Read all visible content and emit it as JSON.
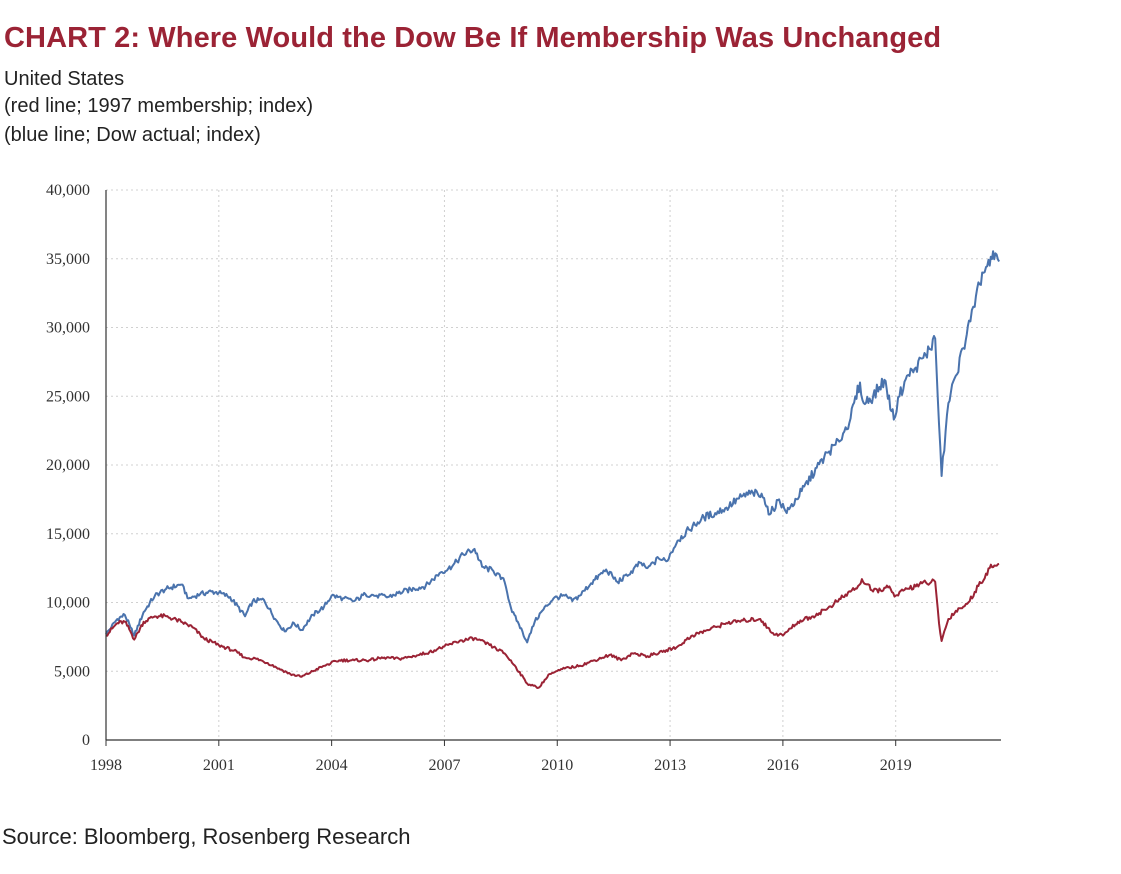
{
  "header": {
    "title": "CHART 2: Where Would the Dow Be If Membership Was Unchanged",
    "subtitle_lines": [
      "United States",
      "(red line; 1997 membership; index)",
      "(blue line; Dow actual; index)"
    ]
  },
  "footer": {
    "source": "Source: Bloomberg, Rosenberg Research"
  },
  "colors": {
    "title": "#9b2335",
    "red_line": "#9b2335",
    "blue_line": "#4a73ad",
    "grid": "#d0d0d0"
  },
  "chart_data": {
    "type": "line",
    "title": "CHART 2: Where Would the Dow Be If Membership Was Unchanged",
    "xlabel": "",
    "ylabel": "",
    "xlim": [
      1998.0,
      2021.8
    ],
    "ylim": [
      0,
      40000
    ],
    "x_ticks": [
      1998,
      2001,
      2004,
      2007,
      2010,
      2013,
      2016,
      2019
    ],
    "x_tick_labels": [
      "1998",
      "2001",
      "2004",
      "2007",
      "2010",
      "2013",
      "2016",
      "2019"
    ],
    "y_ticks": [
      0,
      5000,
      10000,
      15000,
      20000,
      25000,
      30000,
      35000,
      40000
    ],
    "y_tick_labels": [
      "0",
      "5,000",
      "10,000",
      "15,000",
      "20,000",
      "25,000",
      "30,000",
      "35,000",
      "40,000"
    ],
    "grid": true,
    "legend": "none",
    "series": [
      {
        "color": "#4a73ad",
        "x": [
          1998.0,
          1998.3,
          1998.5,
          1998.65,
          1998.75,
          1999.0,
          1999.3,
          1999.6,
          2000.0,
          2000.2,
          2000.5,
          2000.8,
          2001.0,
          2001.3,
          2001.7,
          2001.9,
          2002.2,
          2002.5,
          2002.75,
          2003.0,
          2003.2,
          2003.5,
          2003.8,
          2004.0,
          2004.3,
          2004.6,
          2004.9,
          2005.2,
          2005.5,
          2005.9,
          2006.2,
          2006.5,
          2006.9,
          2007.2,
          2007.5,
          2007.8,
          2008.0,
          2008.3,
          2008.6,
          2008.8,
          2008.95,
          2009.2,
          2009.4,
          2009.6,
          2009.9,
          2010.2,
          2010.4,
          2010.6,
          2010.9,
          2011.3,
          2011.6,
          2011.9,
          2012.2,
          2012.4,
          2012.7,
          2012.9,
          2013.2,
          2013.5,
          2013.9,
          2014.2,
          2014.5,
          2014.9,
          2015.2,
          2015.5,
          2015.65,
          2015.9,
          2016.1,
          2016.5,
          2016.9,
          2017.2,
          2017.5,
          2017.8,
          2018.05,
          2018.15,
          2018.4,
          2018.7,
          2018.95,
          2019.1,
          2019.3,
          2019.5,
          2019.8,
          2020.05,
          2020.15,
          2020.22,
          2020.4,
          2020.6,
          2020.8,
          2020.95,
          2021.1,
          2021.3,
          2021.5,
          2021.65,
          2021.75
        ],
        "y": [
          7700,
          8800,
          9100,
          8200,
          7600,
          9300,
          10500,
          11000,
          11300,
          10300,
          10600,
          10800,
          10700,
          10400,
          9000,
          10100,
          10200,
          8800,
          7900,
          8500,
          8000,
          9100,
          9700,
          10500,
          10300,
          10100,
          10600,
          10500,
          10400,
          10800,
          11000,
          11200,
          12200,
          12600,
          13500,
          13900,
          12600,
          12300,
          11500,
          9300,
          8600,
          7100,
          8600,
          9400,
          10300,
          10500,
          10100,
          10500,
          11400,
          12400,
          11500,
          12000,
          12900,
          12500,
          13200,
          13000,
          14500,
          15300,
          16200,
          16500,
          16900,
          17700,
          18000,
          17600,
          16400,
          17500,
          16500,
          18100,
          19800,
          20900,
          21700,
          23400,
          26000,
          24500,
          25000,
          26200,
          23300,
          25000,
          26500,
          27000,
          28000,
          29200,
          23000,
          19200,
          24500,
          26500,
          28500,
          30500,
          31500,
          34000,
          34500,
          35400,
          34800
        ]
      },
      {
        "color": "#9b2335",
        "x": [
          1998.0,
          1998.3,
          1998.5,
          1998.65,
          1998.75,
          1999.0,
          1999.3,
          1999.6,
          2000.0,
          2000.3,
          2000.6,
          2001.0,
          2001.4,
          2001.7,
          2002.0,
          2002.3,
          2002.6,
          2002.9,
          2003.2,
          2003.5,
          2003.8,
          2004.2,
          2004.6,
          2005.0,
          2005.4,
          2005.8,
          2006.2,
          2006.6,
          2007.0,
          2007.4,
          2007.8,
          2008.2,
          2008.6,
          2008.9,
          2009.2,
          2009.5,
          2009.8,
          2010.2,
          2010.6,
          2011.0,
          2011.4,
          2011.7,
          2012.0,
          2012.4,
          2012.8,
          2013.2,
          2013.6,
          2014.0,
          2014.5,
          2015.0,
          2015.4,
          2015.7,
          2016.0,
          2016.4,
          2016.8,
          2017.2,
          2017.6,
          2018.0,
          2018.1,
          2018.4,
          2018.8,
          2019.0,
          2019.3,
          2019.7,
          2020.05,
          2020.15,
          2020.22,
          2020.4,
          2020.6,
          2020.9,
          2021.2,
          2021.5,
          2021.75
        ],
        "y": [
          7600,
          8500,
          8600,
          7900,
          7300,
          8600,
          9000,
          9000,
          8600,
          8200,
          7400,
          6900,
          6500,
          6000,
          5900,
          5600,
          5200,
          4800,
          4600,
          5000,
          5400,
          5800,
          5800,
          5800,
          6000,
          5900,
          6100,
          6400,
          6800,
          7200,
          7400,
          6900,
          6300,
          5300,
          4100,
          3800,
          4800,
          5200,
          5400,
          5800,
          6200,
          5800,
          6300,
          6100,
          6400,
          6800,
          7600,
          8000,
          8500,
          8700,
          8800,
          7800,
          7600,
          8600,
          9000,
          9600,
          10400,
          11200,
          11700,
          10800,
          11100,
          10500,
          11000,
          11400,
          11500,
          8500,
          7200,
          8800,
          9400,
          9900,
          11200,
          12500,
          12800
        ]
      }
    ]
  }
}
